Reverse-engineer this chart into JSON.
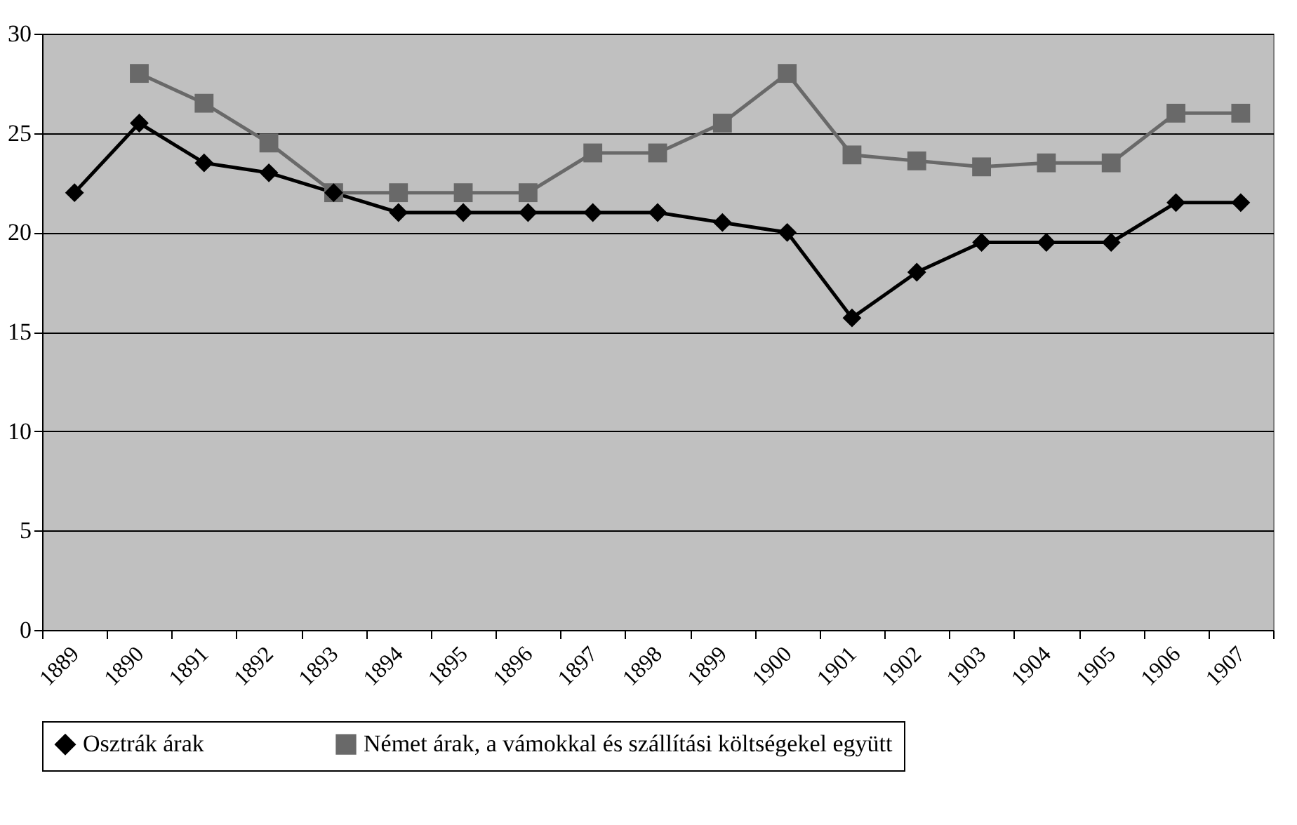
{
  "chart_data": {
    "type": "line",
    "categories": [
      "1889",
      "1890",
      "1891",
      "1892",
      "1893",
      "1894",
      "1895",
      "1896",
      "1897",
      "1898",
      "1899",
      "1900",
      "1901",
      "1902",
      "1903",
      "1904",
      "1905",
      "1906",
      "1907"
    ],
    "series": [
      {
        "name": "Osztrák árak",
        "color": "#000000",
        "marker": "diamond",
        "values": [
          22,
          25.5,
          23.5,
          23,
          22,
          21,
          21,
          21,
          21,
          21,
          20.5,
          20,
          15.7,
          18,
          19.5,
          19.5,
          19.5,
          21.5,
          21.5
        ]
      },
      {
        "name": "Német árak, a vámokkal és szállítási költségekel együtt",
        "color": "#696969",
        "marker": "square",
        "values": [
          null,
          28,
          26.5,
          24.5,
          22,
          22,
          22,
          22,
          24,
          24,
          25.5,
          28,
          23.9,
          23.6,
          23.3,
          23.5,
          23.5,
          26,
          26
        ]
      }
    ],
    "ylim": [
      0,
      30
    ],
    "yticks": [
      0,
      5,
      10,
      15,
      20,
      25,
      30
    ],
    "grid": "y",
    "legend": "bottom"
  }
}
